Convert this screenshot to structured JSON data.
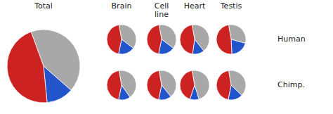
{
  "chart_data": [
    {
      "type": "pie",
      "title": "Total",
      "values": [
        42,
        12,
        46
      ],
      "colors": [
        "#a8a8a8",
        "#2255cc",
        "#cc2222"
      ]
    },
    {
      "type": "pie",
      "categories": [
        "Brain",
        "Cell\nline",
        "Heart",
        "Testis"
      ],
      "colors": [
        "#a8a8a8",
        "#2255cc",
        "#cc2222"
      ],
      "series": [
        {
          "name": "Human",
          "values": [
            [
              38,
              18,
              44
            ],
            [
              38,
              18,
              44
            ],
            [
              42,
              13,
              45
            ],
            [
              32,
              20,
              48
            ]
          ]
        },
        {
          "name": "Chimp.",
          "values": [
            [
              43,
              13,
              44
            ],
            [
              42,
              14,
              44
            ],
            [
              48,
              10,
              42
            ],
            [
              40,
              16,
              44
            ]
          ]
        }
      ]
    }
  ]
}
